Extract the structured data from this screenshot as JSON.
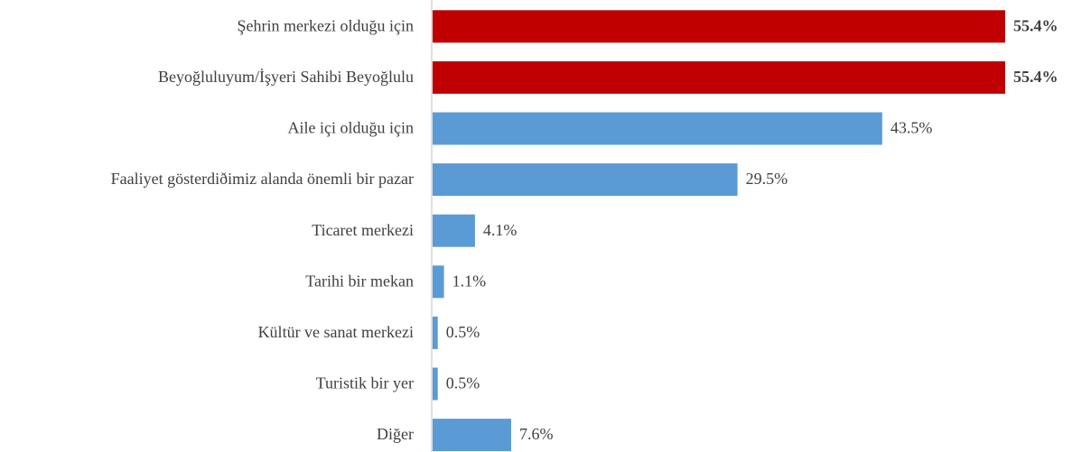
{
  "chart_data": {
    "type": "barh",
    "categories": [
      "Şehrin merkezi olduğu için",
      "Beyoğluluyum/İşyeri Sahibi Beyoğlulu",
      "Aile içi olduğu için",
      "Faaliyet gösterdiðimiz alanda önemli bir pazar",
      "Ticaret merkezi",
      "Tarihi bir mekan",
      "Kültür ve sanat merkezi",
      "Turistik bir yer",
      "Diğer"
    ],
    "values": [
      55.4,
      55.4,
      43.5,
      29.5,
      4.1,
      1.1,
      0.5,
      0.5,
      7.6
    ],
    "value_labels": [
      "55.4%",
      "55.4%",
      "43.5%",
      "29.5%",
      "4.1%",
      "1.1%",
      "0.5%",
      "0.5%",
      "7.6%"
    ],
    "colors": [
      "#c00000",
      "#c00000",
      "#5b9bd5",
      "#5b9bd5",
      "#5b9bd5",
      "#5b9bd5",
      "#5b9bd5",
      "#5b9bd5",
      "#5b9bd5"
    ],
    "bold_labels": [
      true,
      true,
      false,
      false,
      false,
      false,
      false,
      false,
      false
    ]
  }
}
